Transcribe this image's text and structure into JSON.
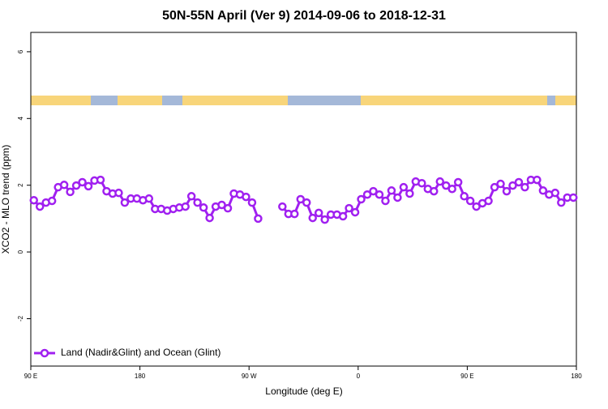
{
  "chart_data": {
    "type": "line",
    "title": "50N-55N April (Ver 9)   2014-09-06 to 2018-12-31",
    "x_label": "Longitude (deg E)",
    "y_label": "XCO2 - MLO trend (ppm)",
    "xlim": [
      90,
      540
    ],
    "ylim": [
      -3.42,
      6.58
    ],
    "xticks": [
      {
        "value": 90,
        "label": "90 E"
      },
      180,
      {
        "value": 270,
        "label": "90 W"
      },
      {
        "value": 360,
        "label": "0"
      },
      {
        "value": 450,
        "label": "90 E"
      },
      {
        "value": 540,
        "label": "180"
      }
    ],
    "yticks": [
      -2,
      0,
      2,
      4,
      6
    ],
    "legend": "bottom-left",
    "x": [
      92.5,
      97.5,
      102.5,
      107.5,
      112.5,
      117.5,
      122.5,
      127.5,
      132.5,
      137.5,
      142.5,
      147.5,
      152.5,
      157.5,
      162.5,
      167.5,
      172.5,
      177.5,
      182.5,
      187.5,
      192.5,
      197.5,
      202.5,
      207.5,
      212.5,
      217.5,
      222.5,
      227.5,
      232.5,
      237.5,
      242.5,
      247.5,
      252.5,
      257.5,
      262.5,
      267.5,
      272.5,
      277.5,
      282.5,
      287.5,
      292.5,
      297.5,
      302.5,
      307.5,
      312.5,
      317.5,
      322.5,
      327.5,
      332.5,
      337.5,
      342.5,
      347.5,
      352.5,
      357.5,
      362.5,
      367.5,
      372.5,
      377.5,
      382.5,
      387.5,
      392.5,
      397.5,
      402.5,
      407.5,
      412.5,
      417.5,
      422.5,
      427.5,
      432.5,
      437.5,
      442.5,
      447.5,
      452.5,
      457.5,
      462.5,
      467.5,
      472.5,
      477.5,
      482.5,
      487.5,
      492.5,
      497.5,
      502.5,
      507.5,
      512.5,
      517.5,
      522.5,
      527.5,
      532.5,
      537.5
    ],
    "series": [
      {
        "name": "Land (Nadir&Glint) and Ocean (Glint)",
        "color": "#a020f0",
        "values": [
          1.55,
          1.36,
          1.48,
          1.53,
          1.94,
          2.01,
          1.8,
          1.99,
          2.09,
          1.97,
          2.14,
          2.16,
          1.82,
          1.75,
          1.77,
          1.48,
          1.6,
          1.6,
          1.55,
          1.6,
          1.29,
          1.29,
          1.24,
          1.29,
          1.33,
          1.36,
          1.67,
          1.48,
          1.33,
          1.02,
          1.36,
          1.41,
          1.31,
          1.75,
          1.72,
          1.65,
          1.48,
          1.0,
          null,
          null,
          null,
          1.36,
          1.14,
          1.14,
          1.58,
          1.48,
          1.02,
          1.17,
          0.97,
          1.12,
          1.12,
          1.07,
          1.31,
          1.19,
          1.58,
          1.72,
          1.82,
          1.72,
          1.53,
          1.84,
          1.63,
          1.94,
          1.75,
          2.11,
          2.06,
          1.89,
          1.82,
          2.11,
          1.99,
          1.89,
          2.09,
          1.67,
          1.53,
          1.36,
          1.46,
          1.53,
          1.94,
          2.04,
          1.82,
          1.99,
          2.09,
          1.94,
          2.16,
          2.16,
          1.84,
          1.72,
          1.77,
          1.48,
          1.63,
          1.63
        ]
      }
    ]
  }
}
